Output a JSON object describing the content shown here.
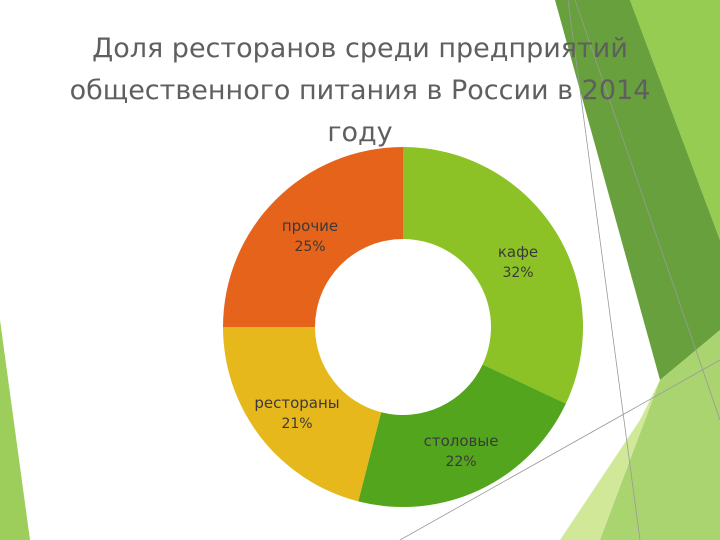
{
  "title_lines": [
    "Доля ресторанов среди предприятий",
    "общественного питания в России в 2014",
    "году"
  ],
  "chart_data": {
    "type": "pie",
    "variant": "donut",
    "title": "Доля ресторанов среди предприятий общественного питания в России в 2014 году",
    "slices": [
      {
        "name": "кафе",
        "value": 32,
        "label": "32%",
        "color": "#8cc226"
      },
      {
        "name": "столовые",
        "value": 22,
        "label": "22%",
        "color": "#54a51e"
      },
      {
        "name": "рестораны",
        "value": 21,
        "label": "21%",
        "color": "#e6b81c"
      },
      {
        "name": "прочие",
        "value": 25,
        "label": "25%",
        "color": "#e5631a"
      }
    ]
  },
  "colors": {
    "title": "#5f5f5f",
    "label": "#3a3a3a",
    "deco_dark": "#5f9b32",
    "deco_mid": "#8cc63f",
    "deco_light": "#c7e27f"
  }
}
